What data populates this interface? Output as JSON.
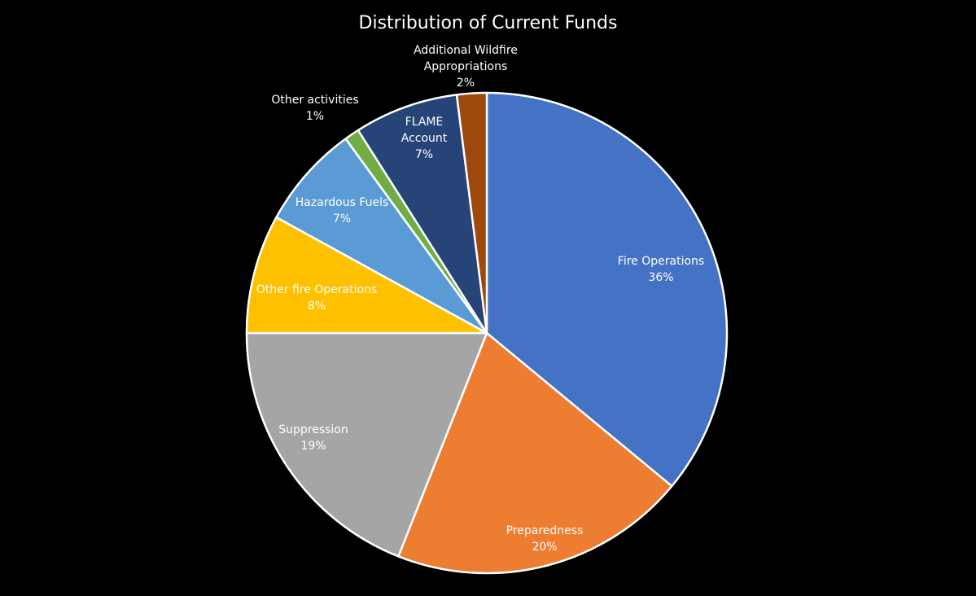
{
  "chart_data": {
    "type": "pie",
    "title": "Distribution of Current Funds",
    "start_angle_deg": 0,
    "direction": "clockwise",
    "slice_border_color": "#ffffff",
    "legend": "none",
    "slices": [
      {
        "label": "Fire Operations",
        "value": 36,
        "display": "36%",
        "color": "#4472C4",
        "label_lines": [
          "Fire Operations"
        ],
        "label_placement": "inside"
      },
      {
        "label": "Preparedness",
        "value": 20,
        "display": "20%",
        "color": "#ED7D31",
        "label_lines": [
          "Preparedness"
        ],
        "label_placement": "inside"
      },
      {
        "label": "Suppression",
        "value": 19,
        "display": "19%",
        "color": "#A5A5A5",
        "label_lines": [
          "Suppression"
        ],
        "label_placement": "inside"
      },
      {
        "label": "Other fire Operations",
        "value": 8,
        "display": "8%",
        "color": "#FFC000",
        "label_lines": [
          "Other fire Operations"
        ],
        "label_placement": "inside"
      },
      {
        "label": "Hazardous Fuels",
        "value": 7,
        "display": "7%",
        "color": "#5B9BD5",
        "label_lines": [
          "Hazardous Fuels"
        ],
        "label_placement": "inside"
      },
      {
        "label": "Other activities",
        "value": 1,
        "display": "1%",
        "color": "#70AD47",
        "label_lines": [
          "Other activities"
        ],
        "label_placement": "outside"
      },
      {
        "label": "FLAME Account",
        "value": 7,
        "display": "7%",
        "color": "#264478",
        "label_lines": [
          "FLAME",
          "Account"
        ],
        "label_placement": "inside"
      },
      {
        "label": "Additional Wildfire Appropriations",
        "value": 2,
        "display": "2%",
        "color": "#9E480E",
        "label_lines": [
          "Additional Wildfire",
          "Appropriations"
        ],
        "label_placement": "outside"
      }
    ]
  }
}
